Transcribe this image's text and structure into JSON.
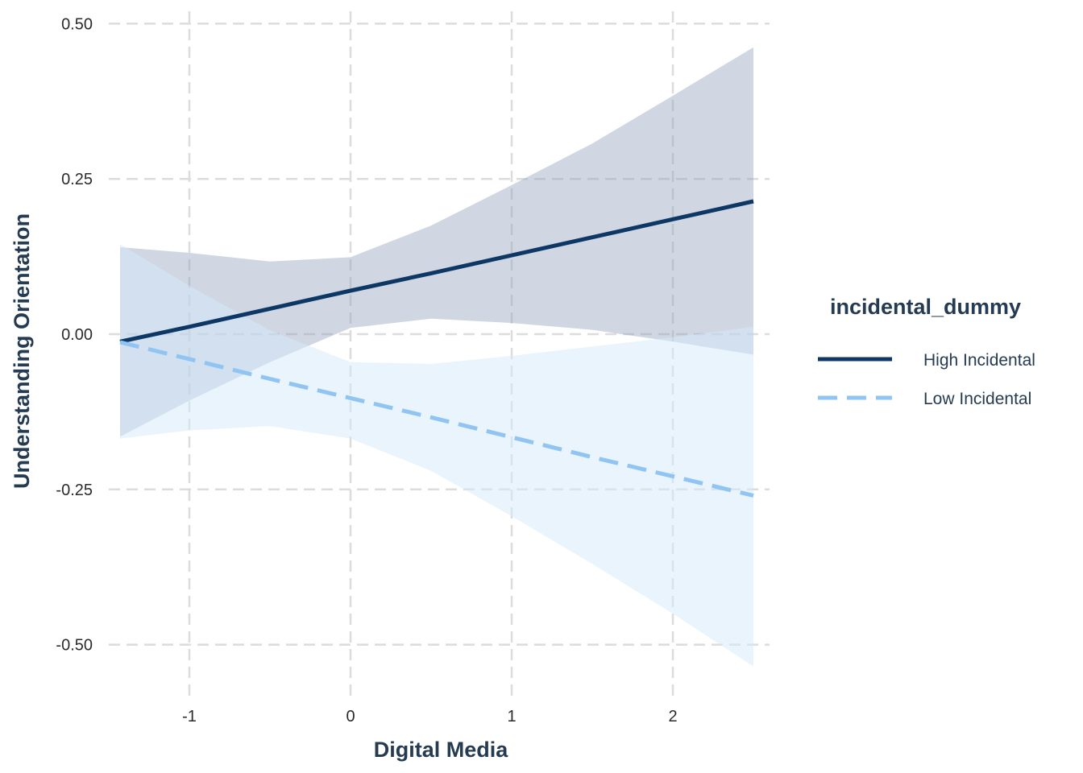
{
  "chart_data": {
    "type": "line",
    "xlabel": "Digital Media",
    "ylabel": "Understanding Orientation",
    "xlim": [
      -1.5,
      2.6
    ],
    "ylim": [
      -0.59,
      0.52
    ],
    "x_ticks": [
      -1,
      0,
      1,
      2
    ],
    "x_tick_labels": [
      "-1",
      "0",
      "1",
      "2"
    ],
    "y_ticks": [
      0.5,
      0.25,
      0.0,
      -0.25,
      -0.5
    ],
    "y_tick_labels": [
      "0.50",
      "0.25",
      "0.00",
      "-0.25",
      "-0.50"
    ],
    "grid": true,
    "legend": {
      "title": "incidental_dummy",
      "position": "right"
    },
    "series": [
      {
        "name": "High Incidental",
        "color": "#0d3764",
        "band_color": "#8f9fba",
        "line_style": "solid",
        "x": [
          -1.43,
          -1.0,
          -0.5,
          0.0,
          0.5,
          1.0,
          1.5,
          2.0,
          2.5
        ],
        "y": [
          -0.012,
          0.012,
          0.041,
          0.07,
          0.098,
          0.127,
          0.156,
          0.185,
          0.214
        ],
        "lower": [
          -0.165,
          -0.107,
          -0.045,
          0.01,
          0.025,
          0.018,
          0.007,
          -0.012,
          -0.033
        ],
        "upper": [
          0.14,
          0.131,
          0.117,
          0.124,
          0.175,
          0.24,
          0.307,
          0.384,
          0.462
        ]
      },
      {
        "name": "Low Incidental",
        "color": "#90c4f3",
        "band_color": "#d3e9fc",
        "line_style": "dashed",
        "x": [
          -1.43,
          -1.0,
          -0.5,
          0.0,
          0.5,
          1.0,
          1.5,
          2.0,
          2.5
        ],
        "y": [
          -0.013,
          -0.04,
          -0.072,
          -0.103,
          -0.134,
          -0.166,
          -0.198,
          -0.229,
          -0.26
        ],
        "lower": [
          -0.168,
          -0.155,
          -0.148,
          -0.168,
          -0.22,
          -0.293,
          -0.37,
          -0.45,
          -0.535
        ],
        "upper": [
          0.145,
          0.078,
          0.006,
          -0.045,
          -0.048,
          -0.035,
          -0.02,
          -0.005,
          0.012
        ]
      }
    ]
  }
}
